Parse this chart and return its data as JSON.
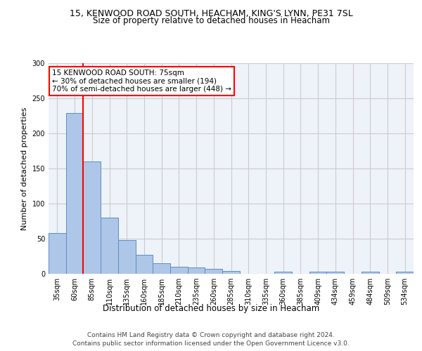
{
  "title_line1": "15, KENWOOD ROAD SOUTH, HEACHAM, KING'S LYNN, PE31 7SL",
  "title_line2": "Size of property relative to detached houses in Heacham",
  "xlabel": "Distribution of detached houses by size in Heacham",
  "ylabel": "Number of detached properties",
  "categories": [
    "35sqm",
    "60sqm",
    "85sqm",
    "110sqm",
    "135sqm",
    "160sqm",
    "185sqm",
    "210sqm",
    "235sqm",
    "260sqm",
    "285sqm",
    "310sqm",
    "335sqm",
    "360sqm",
    "385sqm",
    "409sqm",
    "434sqm",
    "459sqm",
    "484sqm",
    "509sqm",
    "534sqm"
  ],
  "values": [
    58,
    229,
    160,
    80,
    48,
    27,
    15,
    10,
    9,
    7,
    4,
    0,
    0,
    3,
    0,
    3,
    3,
    0,
    3,
    0,
    3
  ],
  "bar_color": "#aec6e8",
  "bar_edge_color": "#5a8fc2",
  "red_line_x": 1.5,
  "annotation_text": "15 KENWOOD ROAD SOUTH: 75sqm\n← 30% of detached houses are smaller (194)\n70% of semi-detached houses are larger (448) →",
  "annotation_box_color": "white",
  "annotation_box_edge_color": "red",
  "red_line_color": "red",
  "ylim": [
    0,
    300
  ],
  "yticks": [
    0,
    50,
    100,
    150,
    200,
    250,
    300
  ],
  "footer_line1": "Contains HM Land Registry data © Crown copyright and database right 2024.",
  "footer_line2": "Contains public sector information licensed under the Open Government Licence v3.0.",
  "grid_color": "#cccccc",
  "bg_color": "#eef2f9",
  "title1_fontsize": 9,
  "title2_fontsize": 8.5,
  "ylabel_fontsize": 8,
  "xlabel_fontsize": 8.5,
  "tick_fontsize": 7,
  "annotation_fontsize": 7.5,
  "footer_fontsize": 6.5
}
